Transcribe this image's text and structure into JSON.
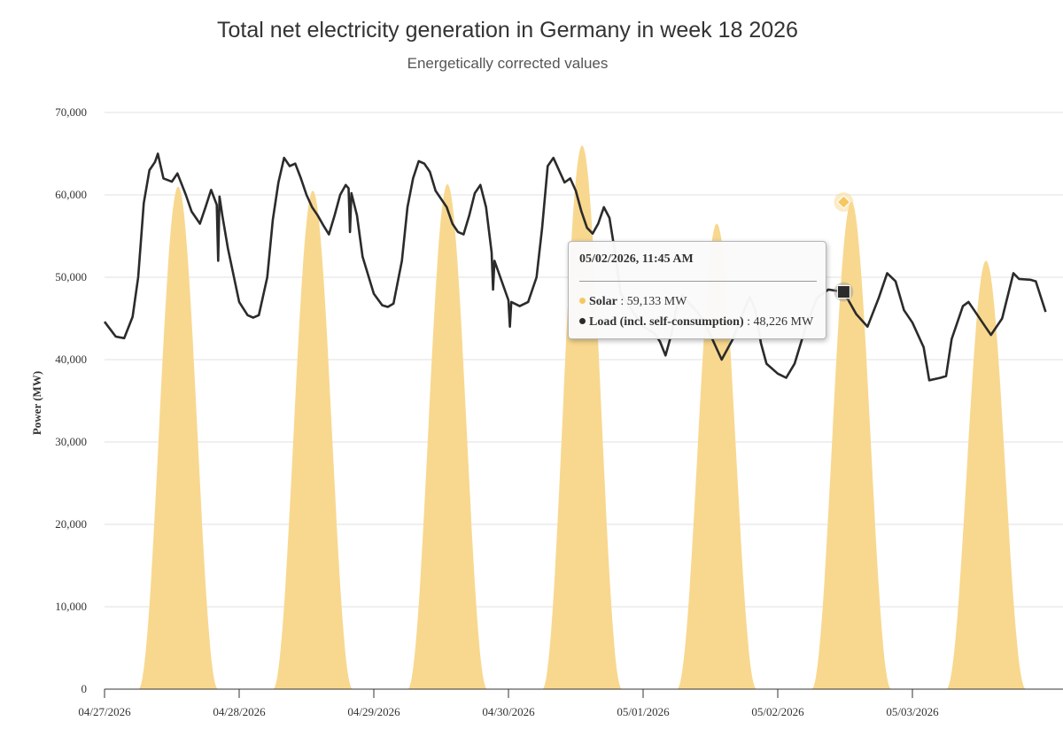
{
  "colors": {
    "solar": "#f8d88f",
    "load": "#2b2b2b",
    "grid": "#e2e2e2"
  },
  "chart_data": {
    "type": "area",
    "title": "Total net electricity generation in Germany in week 18 2026",
    "subtitle": "Energetically corrected values",
    "ylabel": "Power (MW)",
    "xlabel": "",
    "ylim": [
      0,
      70000
    ],
    "yticks": [
      0,
      10000,
      20000,
      30000,
      40000,
      50000,
      60000,
      70000
    ],
    "ytick_labels": [
      "0",
      "10,000",
      "20,000",
      "30,000",
      "40,000",
      "50,000",
      "60,000",
      "70,000"
    ],
    "xlim": [
      "04/27/2026 00:00",
      "05/03/2026 23:45"
    ],
    "xtick_labels": [
      "04/27/2026",
      "04/28/2026",
      "04/29/2026",
      "04/30/2026",
      "05/01/2026",
      "05/02/2026",
      "05/03/2026"
    ],
    "grid": true,
    "series": [
      {
        "name": "Solar",
        "type": "area",
        "daily_peaks": [
          {
            "date": "04/27/2026",
            "peak": 61000
          },
          {
            "date": "04/28/2026",
            "peak": 60500
          },
          {
            "date": "04/29/2026",
            "peak": 61300
          },
          {
            "date": "04/30/2026",
            "peak": 66000
          },
          {
            "date": "05/01/2026",
            "peak": 56500
          },
          {
            "date": "05/02/2026",
            "peak": 59200
          },
          {
            "date": "05/03/2026",
            "peak": 52000
          }
        ]
      },
      {
        "name": "Load (incl. self-consumption)",
        "type": "line",
        "points": [
          [
            "04/27/2026 00:00",
            44600
          ],
          [
            "04/27/2026 02:00",
            42800
          ],
          [
            "04/27/2026 03:30",
            42600
          ],
          [
            "04/27/2026 05:00",
            45200
          ],
          [
            "04/27/2026 06:00",
            50000
          ],
          [
            "04/27/2026 07:00",
            59000
          ],
          [
            "04/27/2026 08:00",
            63000
          ],
          [
            "04/27/2026 09:00",
            64000
          ],
          [
            "04/27/2026 09:30",
            65000
          ],
          [
            "04/27/2026 10:30",
            62000
          ],
          [
            "04/27/2026 12:00",
            61600
          ],
          [
            "04/27/2026 13:00",
            62600
          ],
          [
            "04/27/2026 14:30",
            60000
          ],
          [
            "04/27/2026 15:30",
            58000
          ],
          [
            "04/27/2026 17:00",
            56500
          ],
          [
            "04/27/2026 18:00",
            58500
          ],
          [
            "04/27/2026 19:00",
            60600
          ],
          [
            "04/27/2026 20:00",
            58800
          ],
          [
            "04/27/2026 20:15",
            52000
          ],
          [
            "04/27/2026 20:30",
            59800
          ],
          [
            "04/27/2026 21:00",
            57500
          ],
          [
            "04/27/2026 22:00",
            53500
          ],
          [
            "04/28/2026 00:00",
            47000
          ],
          [
            "04/28/2026 01:30",
            45400
          ],
          [
            "04/28/2026 02:30",
            45100
          ],
          [
            "04/28/2026 03:30",
            45400
          ],
          [
            "04/28/2026 05:00",
            50000
          ],
          [
            "04/28/2026 06:00",
            57000
          ],
          [
            "04/28/2026 07:00",
            61500
          ],
          [
            "04/28/2026 08:00",
            64500
          ],
          [
            "04/28/2026 09:00",
            63500
          ],
          [
            "04/28/2026 10:00",
            63800
          ],
          [
            "04/28/2026 11:00",
            62000
          ],
          [
            "04/28/2026 12:00",
            60000
          ],
          [
            "04/28/2026 13:00",
            58500
          ],
          [
            "04/28/2026 14:00",
            57500
          ],
          [
            "04/28/2026 15:00",
            56300
          ],
          [
            "04/28/2026 16:00",
            55200
          ],
          [
            "04/28/2026 17:00",
            57500
          ],
          [
            "04/28/2026 18:00",
            60000
          ],
          [
            "04/28/2026 19:00",
            61200
          ],
          [
            "04/28/2026 19:30",
            60800
          ],
          [
            "04/28/2026 19:45",
            55500
          ],
          [
            "04/28/2026 20:00",
            60200
          ],
          [
            "04/28/2026 21:00",
            57500
          ],
          [
            "04/28/2026 22:00",
            52500
          ],
          [
            "04/29/2026 00:00",
            48000
          ],
          [
            "04/29/2026 01:30",
            46600
          ],
          [
            "04/29/2026 02:30",
            46400
          ],
          [
            "04/29/2026 03:30",
            46800
          ],
          [
            "04/29/2026 05:00",
            52000
          ],
          [
            "04/29/2026 06:00",
            58500
          ],
          [
            "04/29/2026 07:00",
            62000
          ],
          [
            "04/29/2026 08:00",
            64100
          ],
          [
            "04/29/2026 09:00",
            63800
          ],
          [
            "04/29/2026 10:00",
            62800
          ],
          [
            "04/29/2026 11:00",
            60500
          ],
          [
            "04/29/2026 12:00",
            59500
          ],
          [
            "04/29/2026 13:00",
            58500
          ],
          [
            "04/29/2026 14:00",
            56500
          ],
          [
            "04/29/2026 15:00",
            55500
          ],
          [
            "04/29/2026 16:00",
            55200
          ],
          [
            "04/29/2026 17:00",
            57500
          ],
          [
            "04/29/2026 18:00",
            60200
          ],
          [
            "04/29/2026 19:00",
            61200
          ],
          [
            "04/29/2026 20:00",
            58500
          ],
          [
            "04/29/2026 21:00",
            53000
          ],
          [
            "04/29/2026 21:15",
            48500
          ],
          [
            "04/29/2026 21:30",
            52000
          ],
          [
            "04/30/2026 00:00",
            47200
          ],
          [
            "04/30/2026 00:15",
            44000
          ],
          [
            "04/30/2026 00:30",
            47000
          ],
          [
            "04/30/2026 02:00",
            46500
          ],
          [
            "04/30/2026 03:30",
            47000
          ],
          [
            "04/30/2026 05:00",
            50000
          ],
          [
            "04/30/2026 06:00",
            56000
          ],
          [
            "04/30/2026 07:00",
            63500
          ],
          [
            "04/30/2026 08:00",
            64500
          ],
          [
            "04/30/2026 09:00",
            63000
          ],
          [
            "04/30/2026 10:00",
            61500
          ],
          [
            "04/30/2026 11:00",
            62000
          ],
          [
            "04/30/2026 12:00",
            60500
          ],
          [
            "04/30/2026 13:00",
            58000
          ],
          [
            "04/30/2026 14:00",
            56000
          ],
          [
            "04/30/2026 15:00",
            55300
          ],
          [
            "04/30/2026 16:00",
            56500
          ],
          [
            "04/30/2026 17:00",
            58500
          ],
          [
            "04/30/2026 18:00",
            57200
          ],
          [
            "04/30/2026 19:00",
            53000
          ],
          [
            "04/30/2026 20:00",
            48000
          ],
          [
            "05/01/2026 00:00",
            44000
          ],
          [
            "05/01/2026 02:00",
            43200
          ],
          [
            "05/01/2026 03:00",
            42200
          ],
          [
            "05/01/2026 04:00",
            40500
          ],
          [
            "05/01/2026 05:00",
            43000
          ],
          [
            "05/01/2026 06:00",
            46500
          ],
          [
            "05/01/2026 07:00",
            47800
          ],
          [
            "05/01/2026 08:00",
            47000
          ],
          [
            "05/01/2026 10:00",
            45500
          ],
          [
            "05/01/2026 12:00",
            43000
          ],
          [
            "05/01/2026 14:00",
            40000
          ],
          [
            "05/01/2026 16:00",
            42500
          ],
          [
            "05/01/2026 18:00",
            46000
          ],
          [
            "05/01/2026 19:00",
            47600
          ],
          [
            "05/01/2026 20:00",
            46000
          ],
          [
            "05/01/2026 21:00",
            42000
          ],
          [
            "05/01/2026 22:00",
            39500
          ],
          [
            "05/02/2026 00:00",
            38300
          ],
          [
            "05/02/2026 01:30",
            37800
          ],
          [
            "05/02/2026 03:00",
            39500
          ],
          [
            "05/02/2026 05:00",
            44000
          ],
          [
            "05/02/2026 07:00",
            47500
          ],
          [
            "05/02/2026 09:00",
            48500
          ],
          [
            "05/02/2026 11:45",
            48226
          ],
          [
            "05/02/2026 14:00",
            45500
          ],
          [
            "05/02/2026 16:00",
            44000
          ],
          [
            "05/02/2026 18:00",
            47500
          ],
          [
            "05/02/2026 19:30",
            50500
          ],
          [
            "05/02/2026 21:00",
            49500
          ],
          [
            "05/02/2026 22:30",
            46000
          ],
          [
            "05/03/2026 00:00",
            44500
          ],
          [
            "05/03/2026 02:00",
            41500
          ],
          [
            "05/03/2026 03:00",
            37500
          ],
          [
            "05/03/2026 05:00",
            37800
          ],
          [
            "05/03/2026 06:00",
            38000
          ],
          [
            "05/03/2026 07:00",
            42500
          ],
          [
            "05/03/2026 09:00",
            46500
          ],
          [
            "05/03/2026 10:00",
            47000
          ],
          [
            "05/03/2026 11:00",
            46000
          ],
          [
            "05/03/2026 13:00",
            44000
          ],
          [
            "05/03/2026 14:00",
            43000
          ],
          [
            "05/03/2026 16:00",
            45000
          ],
          [
            "05/03/2026 18:00",
            50500
          ],
          [
            "05/03/2026 19:00",
            49800
          ],
          [
            "05/03/2026 21:00",
            49700
          ],
          [
            "05/03/2026 22:00",
            49500
          ],
          [
            "05/03/2026 23:45",
            45800
          ]
        ]
      }
    ],
    "legend": "none",
    "tooltip": {
      "time": "05/02/2026, 11:45 AM",
      "solar_label": "Solar",
      "solar_value": ": 59,133 MW",
      "load_label": "Load (incl. self-consumption)",
      "load_value": ": 48,226 MW",
      "solar_at_time": 59133,
      "load_at_time": 48226
    }
  }
}
